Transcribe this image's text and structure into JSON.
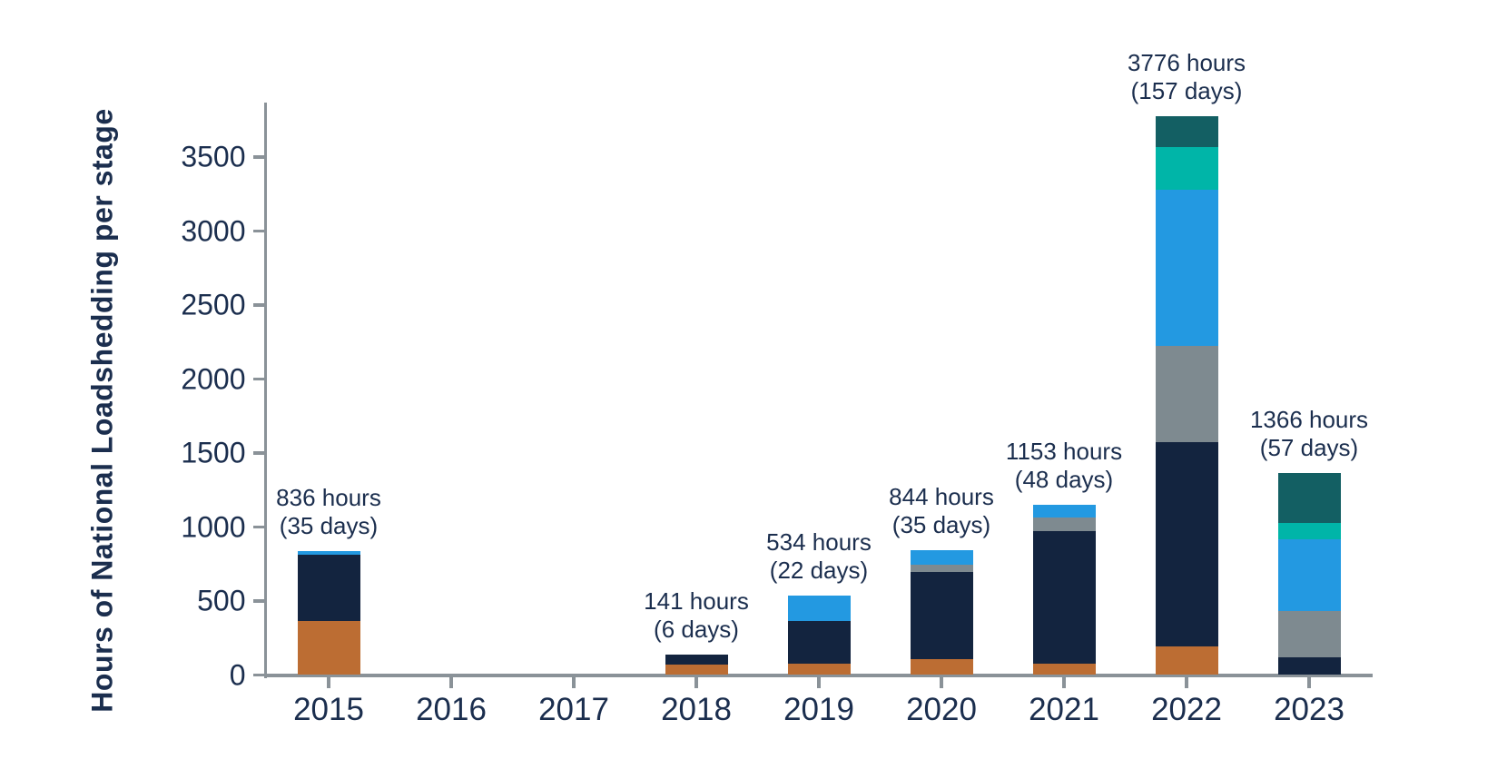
{
  "chart_data": {
    "type": "bar",
    "stacked": true,
    "title": "",
    "xlabel": "",
    "ylabel": "Hours of National Loadshedding per stage",
    "categories": [
      "2015",
      "2016",
      "2017",
      "2018",
      "2019",
      "2020",
      "2021",
      "2022",
      "2023"
    ],
    "series": [
      {
        "name": "segment-orange",
        "color": "#BC6D33",
        "values": [
          365,
          0,
          0,
          70,
          75,
          105,
          75,
          192,
          0
        ]
      },
      {
        "name": "segment-navy",
        "color": "#13243F",
        "values": [
          445,
          0,
          0,
          71,
          290,
          590,
          895,
          1380,
          120
        ]
      },
      {
        "name": "segment-gray",
        "color": "#7E8A90",
        "values": [
          0,
          0,
          0,
          0,
          0,
          52,
          93,
          652,
          310
        ]
      },
      {
        "name": "segment-blue",
        "color": "#2399E1",
        "values": [
          26,
          0,
          0,
          0,
          169,
          97,
          90,
          1056,
          488
        ]
      },
      {
        "name": "segment-teal",
        "color": "#00B5A8",
        "values": [
          0,
          0,
          0,
          0,
          0,
          0,
          0,
          288,
          110
        ]
      },
      {
        "name": "segment-dark-teal",
        "color": "#135F63",
        "values": [
          0,
          0,
          0,
          0,
          0,
          0,
          0,
          208,
          338
        ]
      }
    ],
    "totals": [
      836,
      0,
      0,
      141,
      534,
      844,
      1153,
      3776,
      1366
    ],
    "annotations": [
      {
        "line1": "836 hours",
        "line2": "(35 days)"
      },
      null,
      null,
      {
        "line1": "141 hours",
        "line2": "(6 days)"
      },
      {
        "line1": "534 hours",
        "line2": "(22 days)"
      },
      {
        "line1": "844 hours",
        "line2": "(35 days)"
      },
      {
        "line1": "1153 hours",
        "line2": "(48 days)"
      },
      {
        "line1": "3776 hours",
        "line2": "(157 days)"
      },
      {
        "line1": "1366 hours",
        "line2": "(57 days)"
      }
    ],
    "y_ticks": [
      0,
      500,
      1000,
      1500,
      2000,
      2500,
      3000,
      3500
    ],
    "ylim": [
      0,
      3865
    ],
    "grid": false,
    "legend": "none",
    "colors": {
      "axis": "#8A9298",
      "text": "#1B2E4E"
    }
  }
}
